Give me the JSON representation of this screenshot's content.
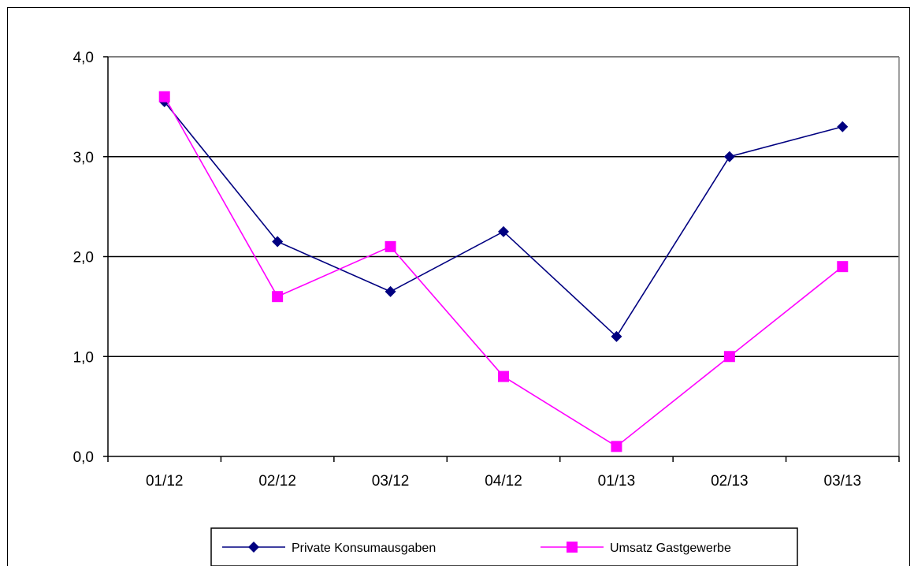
{
  "chart_data": {
    "type": "line",
    "title": "",
    "xlabel": "",
    "ylabel": "",
    "categories": [
      "01/12",
      "02/12",
      "03/12",
      "04/12",
      "01/13",
      "02/13",
      "03/13"
    ],
    "ylim": [
      0,
      4
    ],
    "yticks": [
      0,
      1,
      2,
      3,
      4
    ],
    "ytick_labels": [
      "0,0",
      "1,0",
      "2,0",
      "3,0",
      "4,0"
    ],
    "grid": "horizontal",
    "legend_position": "bottom",
    "series": [
      {
        "name": "Private Konsumausgaben",
        "color": "#000080",
        "marker": "diamond",
        "values": [
          3.55,
          2.15,
          1.65,
          2.25,
          1.2,
          3.0,
          3.3
        ]
      },
      {
        "name": "Umsatz Gastgewerbe",
        "color": "#ff00ff",
        "marker": "square",
        "values": [
          3.6,
          1.6,
          2.1,
          0.8,
          0.1,
          1.0,
          1.9
        ]
      }
    ]
  }
}
